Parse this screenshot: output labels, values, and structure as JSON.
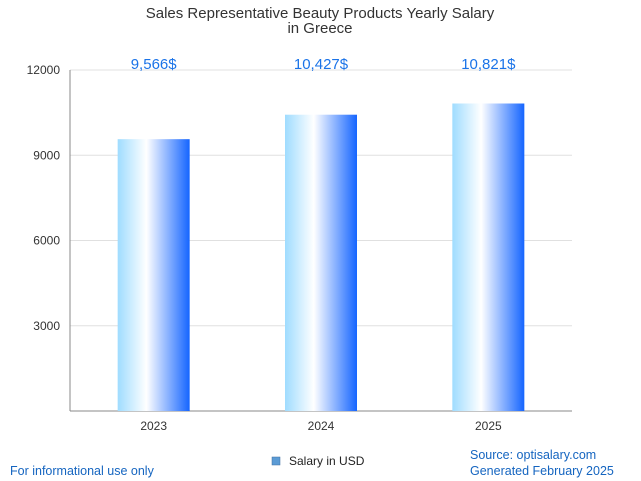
{
  "colors": {
    "footer": "#1565c0",
    "data_label": "#1a73e8",
    "bar_light": "#ffffff",
    "bar_mid": "#9fdcff",
    "bar_dark": "#1565ff",
    "grid": "#e0e0e0",
    "axis": "#888888"
  },
  "chart_data": {
    "type": "bar",
    "title": "Sales Representative Beauty Products Yearly Salary in Greece",
    "title_lines": [
      "Sales Representative Beauty Products Yearly Salary",
      "in Greece"
    ],
    "categories": [
      "2023",
      "2024",
      "2025"
    ],
    "series": [
      {
        "name": "Salary in USD",
        "values": [
          9566,
          10427,
          10821
        ],
        "labels": [
          "9,566$",
          "10,427$",
          "10,821$"
        ]
      }
    ],
    "ylim": [
      0,
      12000
    ],
    "yticks": [
      3000,
      6000,
      9000,
      12000
    ],
    "xlabel": "",
    "ylabel": "",
    "grid": true,
    "legend_position": "bottom-center"
  },
  "footer": {
    "disclaimer": "For informational use only",
    "source": "Source: optisalary.com",
    "generated": "Generated February 2025"
  }
}
